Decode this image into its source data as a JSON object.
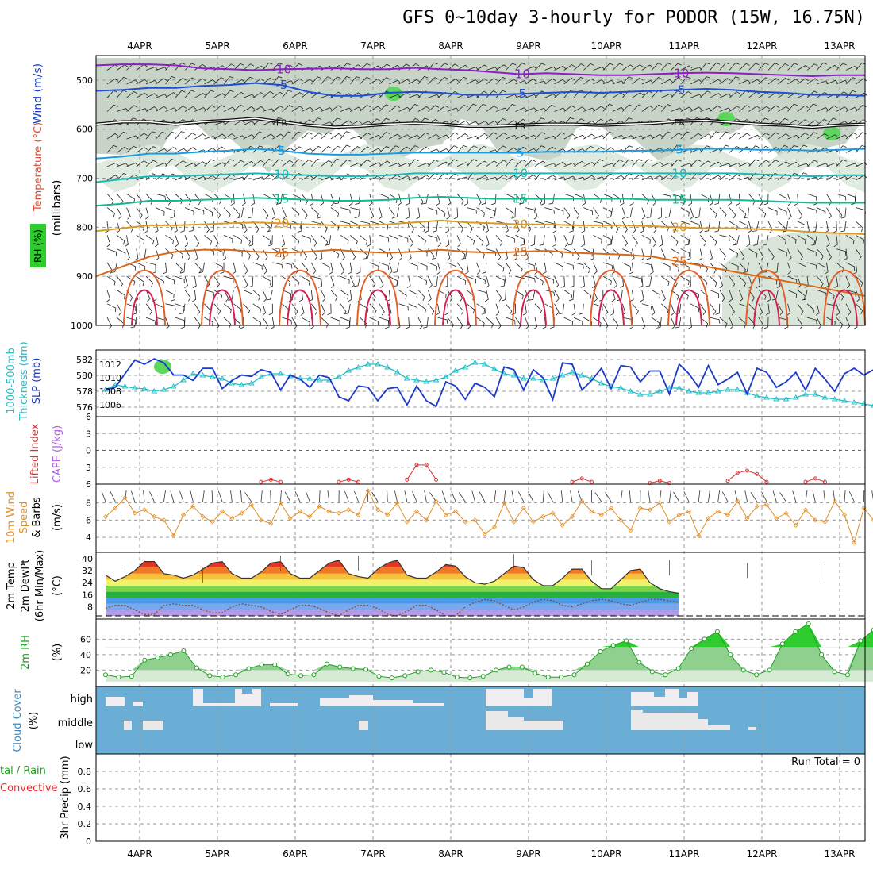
{
  "title": "GFS 0~10day 3-hourly for PODOR (15W, 16.75N)",
  "dates": [
    "4APR",
    "5APR",
    "6APR",
    "7APR",
    "8APR",
    "9APR",
    "10APR",
    "11APR",
    "12APR",
    "13APR"
  ],
  "colors": {
    "wind_line": "#1a3fd0",
    "temp_line": "#e24a2a",
    "rh_fill": "#22cc22",
    "thickness": "#22bfc9",
    "slp": "#1b3ac8",
    "lifted": "#e03030",
    "cape": "#b060e0",
    "wind10": "#e0902a",
    "barb": "#333333",
    "cloud": "#6aaed6",
    "cloud_gap": "#f0eef0",
    "rh2m": "#1fa01f"
  },
  "chart_data": [
    {
      "type": "heatmap",
      "panel": "upper-air",
      "ylabel": "(millibars)",
      "yticks": [
        500,
        600,
        700,
        800,
        900,
        1000
      ],
      "ylim": [
        450,
        1000
      ],
      "side_labels": [
        "Wind (m/s)",
        "Temperature (°C)",
        "RH (%)"
      ],
      "temperature_contours": [
        {
          "label": "-10",
          "p": [
            470,
            468,
            468,
            470,
            476,
            478,
            480,
            478,
            477,
            476,
            478,
            478,
            475,
            478,
            480,
            484,
            488,
            486,
            488,
            490,
            490,
            488,
            486,
            485,
            486,
            488,
            490,
            492,
            490,
            490
          ]
        },
        {
          "label": "-5",
          "p": [
            522,
            520,
            516,
            516,
            512,
            510,
            506,
            510,
            524,
            532,
            532,
            526,
            524,
            526,
            530,
            530,
            528,
            526,
            524,
            526,
            524,
            522,
            520,
            518,
            520,
            524,
            526,
            530,
            530,
            532
          ]
        },
        {
          "label": "FR",
          "p": [
            590,
            585,
            585,
            590,
            585,
            582,
            578,
            585,
            592,
            596,
            594,
            590,
            588,
            590,
            594,
            594,
            592,
            590,
            590,
            592,
            590,
            588,
            584,
            582,
            586,
            590,
            592,
            596,
            592,
            590
          ]
        },
        {
          "label": "5",
          "p": [
            660,
            656,
            650,
            650,
            646,
            644,
            640,
            644,
            650,
            652,
            652,
            650,
            648,
            648,
            648,
            648,
            648,
            646,
            646,
            646,
            644,
            644,
            642,
            640,
            640,
            642,
            642,
            644,
            642,
            640
          ]
        },
        {
          "label": "10",
          "p": [
            708,
            702,
            696,
            696,
            694,
            692,
            690,
            692,
            694,
            696,
            696,
            694,
            690,
            690,
            690,
            690,
            690,
            690,
            690,
            690,
            690,
            690,
            690,
            690,
            690,
            692,
            694,
            696,
            694,
            694
          ]
        },
        {
          "label": "15",
          "p": [
            756,
            752,
            746,
            746,
            744,
            742,
            740,
            742,
            744,
            746,
            746,
            744,
            740,
            738,
            740,
            742,
            742,
            742,
            742,
            742,
            742,
            744,
            744,
            744,
            744,
            746,
            748,
            750,
            750,
            750
          ]
        },
        {
          "label": "20",
          "p": [
            808,
            802,
            796,
            796,
            794,
            792,
            790,
            792,
            794,
            796,
            796,
            794,
            790,
            786,
            790,
            792,
            794,
            794,
            796,
            796,
            796,
            798,
            800,
            802,
            802,
            804,
            806,
            810,
            812,
            814
          ]
        },
        {
          "label": "25",
          "p": [
            900,
            880,
            860,
            850,
            846,
            846,
            850,
            852,
            850,
            846,
            850,
            852,
            850,
            846,
            850,
            852,
            850,
            848,
            852,
            854,
            856,
            860,
            870,
            880,
            890,
            900,
            910,
            920,
            930,
            940
          ]
        }
      ]
    },
    {
      "type": "line",
      "panel": "thickness-slp",
      "series": [
        {
          "name": "1000-500mb Thickness (dm)",
          "axis": "left",
          "yticks": [
            576,
            578,
            580,
            582
          ],
          "values": [
            578.2,
            578.8,
            578.6,
            578.4,
            578.3,
            578.0,
            578.2,
            578.6,
            579.4,
            580.2,
            580.0,
            579.8,
            579.6,
            579.0,
            578.8,
            579.0,
            579.8,
            580.2,
            580.2,
            579.9,
            579.6,
            579.6,
            579.4,
            579.4,
            579.8,
            580.6,
            581.0,
            581.4,
            581.4,
            581.0,
            580.4,
            579.6,
            579.4,
            579.2,
            579.4,
            579.8,
            580.6,
            581.0,
            581.6,
            581.4,
            580.8,
            580.2,
            580.0,
            579.6,
            579.6,
            579.4,
            579.6,
            580.0,
            580.4,
            580.0,
            579.6,
            579.0,
            578.6,
            578.4,
            578.0,
            577.6,
            577.6,
            578.0,
            578.4,
            578.4,
            578.0,
            577.8,
            577.8,
            578.0,
            578.2,
            578.2,
            577.8,
            577.4,
            577.2,
            577.0,
            577.0,
            577.2,
            577.6,
            577.6,
            577.2,
            577.0,
            576.8,
            576.6,
            576.4,
            576.2
          ]
        },
        {
          "name": "SLP (mb)",
          "axis": "right",
          "yticks": [
            1006,
            1008,
            1010,
            1012
          ],
          "values": [
            1008.2,
            1008.6,
            1010.6,
            1012.6,
            1012.0,
            1012.8,
            1012.2,
            1010.4,
            1010.4,
            1009.6,
            1011.4,
            1011.4,
            1008.4,
            1009.6,
            1010.4,
            1010.2,
            1011.2,
            1010.8,
            1008.2,
            1010.4,
            1009.8,
            1008.6,
            1010.4,
            1010.0,
            1007.2,
            1006.6,
            1008.8,
            1008.6,
            1006.6,
            1008.4,
            1008.6,
            1006.0,
            1008.8,
            1006.6,
            1005.8,
            1009.4,
            1008.8,
            1006.8,
            1009.2,
            1008.6,
            1007.2,
            1011.6,
            1011.2,
            1008.2,
            1011.2,
            1010.0,
            1006.8,
            1012.2,
            1012.0,
            1008.2,
            1009.6,
            1011.4,
            1008.4,
            1011.8,
            1011.6,
            1009.4,
            1011.0,
            1011.0,
            1007.6,
            1012.0,
            1010.6,
            1008.6,
            1011.8,
            1009.0,
            1009.8,
            1010.8,
            1007.6,
            1011.4,
            1010.8,
            1008.6,
            1009.4,
            1010.8,
            1008.2,
            1011.4,
            1009.8,
            1008.0,
            1010.6,
            1011.4,
            1010.4,
            1011.2
          ]
        }
      ]
    },
    {
      "type": "line",
      "panel": "lifted-cape",
      "series": [
        {
          "name": "Lifted Index",
          "yticks": [
            -6,
            -3,
            0,
            3,
            6
          ],
          "ylim": [
            -6,
            6
          ],
          "segments": [
            {
              "t": [
                16,
                17,
                18
              ],
              "values": [
                5.6,
                5.2,
                5.6
              ]
            },
            {
              "t": [
                24,
                25,
                26
              ],
              "values": [
                5.6,
                5.2,
                5.6
              ]
            },
            {
              "t": [
                31,
                32,
                33,
                34
              ],
              "values": [
                5.2,
                2.6,
                2.6,
                5.2
              ]
            },
            {
              "t": [
                48,
                49,
                50
              ],
              "values": [
                5.6,
                5.0,
                5.6
              ]
            },
            {
              "t": [
                56,
                57,
                58
              ],
              "values": [
                5.8,
                5.4,
                5.8
              ]
            },
            {
              "t": [
                64,
                65,
                66,
                67,
                68
              ],
              "values": [
                5.4,
                4.0,
                3.6,
                4.2,
                5.6
              ]
            },
            {
              "t": [
                72,
                73,
                74
              ],
              "values": [
                5.6,
                5.0,
                5.6
              ]
            }
          ]
        },
        {
          "name": "CAPE (J/kg)",
          "values": []
        }
      ]
    },
    {
      "type": "line",
      "panel": "wind10m",
      "series": [
        {
          "name": "10m Wind Speed & Barbs (m/s)",
          "yticks": [
            4,
            6,
            8
          ],
          "values": [
            6.4,
            7.4,
            8.6,
            6.8,
            7.2,
            6.4,
            6.0,
            4.2,
            6.6,
            7.6,
            6.4,
            5.8,
            7.0,
            6.2,
            6.8,
            7.8,
            6.0,
            5.6,
            8.0,
            6.2,
            7.0,
            6.4,
            7.6,
            7.0,
            6.8,
            7.2,
            6.6,
            9.4,
            7.2,
            6.6,
            8.0,
            5.8,
            7.0,
            6.0,
            8.2,
            6.6,
            7.0,
            5.8,
            6.0,
            4.4,
            5.2,
            8.0,
            5.8,
            7.4,
            5.8,
            6.4,
            6.8,
            5.4,
            6.4,
            8.2,
            7.0,
            6.6,
            7.4,
            6.0,
            4.8,
            7.4,
            7.2,
            8.0,
            5.8,
            6.6,
            7.0,
            4.2,
            6.2,
            7.0,
            6.6,
            8.2,
            6.2,
            7.6,
            7.8,
            6.2,
            6.8,
            5.4,
            7.2,
            6.0,
            5.8,
            8.2,
            6.6,
            3.4,
            7.4,
            6.0,
            6.8,
            8.2,
            6.2,
            4.0
          ]
        }
      ]
    },
    {
      "type": "area",
      "panel": "temp2m",
      "yticks": [
        8,
        16,
        24,
        32,
        40
      ],
      "series": [
        {
          "name": "2m Temp",
          "values": [
            29,
            25,
            28,
            32,
            38,
            38,
            30,
            29,
            27,
            29,
            33,
            37,
            38,
            30,
            27,
            27,
            31,
            37,
            38,
            30,
            27,
            27,
            32,
            37,
            39,
            30,
            28,
            27,
            33,
            37,
            39,
            29,
            27,
            27,
            31,
            36,
            35,
            28,
            24,
            23,
            25,
            30,
            35,
            34,
            26,
            22,
            22,
            27,
            33,
            33,
            25,
            20,
            20,
            26,
            32,
            33,
            24,
            20,
            18,
            17
          ]
        },
        {
          "name": "2m DewPt",
          "values": [
            7,
            9,
            9,
            6,
            3,
            3,
            9,
            10,
            9,
            9,
            6,
            4,
            4,
            8,
            10,
            9,
            8,
            5,
            3,
            6,
            9,
            9,
            7,
            4,
            2,
            6,
            9,
            9,
            7,
            3,
            2,
            5,
            9,
            9,
            6,
            2,
            2,
            8,
            11,
            13,
            12,
            9,
            6,
            8,
            11,
            13,
            12,
            9,
            8,
            10,
            12,
            13,
            12,
            10,
            9,
            11,
            13,
            13,
            12,
            11
          ]
        },
        {
          "name": "2m (6hr Min/Max)",
          "values": []
        }
      ]
    },
    {
      "type": "area",
      "panel": "rh2m",
      "series": [
        {
          "name": "2m RH (%)",
          "yticks": [
            20,
            40,
            60
          ],
          "values": [
            14,
            11,
            12,
            33,
            36,
            40,
            45,
            23,
            13,
            11,
            14,
            22,
            27,
            27,
            15,
            13,
            14,
            28,
            24,
            22,
            21,
            12,
            10,
            13,
            18,
            20,
            17,
            11,
            10,
            12,
            20,
            24,
            24,
            16,
            11,
            11,
            14,
            28,
            44,
            52,
            58,
            30,
            18,
            14,
            22,
            48,
            60,
            70,
            40,
            20,
            14,
            20,
            54,
            70,
            80,
            40,
            18,
            14,
            58,
            72
          ]
        }
      ]
    },
    {
      "type": "heatmap",
      "panel": "cloud-cover",
      "ylabel": "(%)",
      "rows": [
        "high",
        "middle",
        "low"
      ],
      "series": [
        {
          "name": "Cloud Cover",
          "values": []
        }
      ]
    },
    {
      "type": "bar",
      "panel": "precip",
      "xlabel": "",
      "yticks": [
        0,
        0.2,
        0.4,
        0.6,
        0.8
      ],
      "ylim": [
        0,
        1
      ],
      "annotation": "Run Total = 0",
      "series": [
        {
          "name": "3hr Precip (mm)",
          "values": []
        }
      ]
    }
  ],
  "labels": {
    "wind_ms": "Wind (m/s)",
    "temperature_c": "Temperature (°C)",
    "rh_pct": "RH (%)",
    "millibars": "(millibars)",
    "thickness": "1000-500mb",
    "thickness2": "Thickness (dm)",
    "slp": "SLP (mb)",
    "lifted": "Lifted Index",
    "cape": "CAPE (J/kg)",
    "wind10_a": "10m Wind",
    "wind10_b": "Speed",
    "wind10_c": "& Barbs",
    "wind10_d": "(m/s)",
    "t2_a": "2m Temp",
    "t2_b": "2m DewPt",
    "t2_c": "(6hr Min/Max)",
    "t2_d": "(°C)",
    "rh_a": "2m RH",
    "rh_b": "(%)",
    "cloud_a": "Cloud Cover",
    "cloud_b": "(%)",
    "precip_a": "tal / Rain",
    "precip_b": "Convective",
    "precip_c": "3hr Precip (mm)",
    "cloud_rows": [
      "high",
      "middle",
      "low"
    ],
    "run_total": "Run Total = 0"
  }
}
